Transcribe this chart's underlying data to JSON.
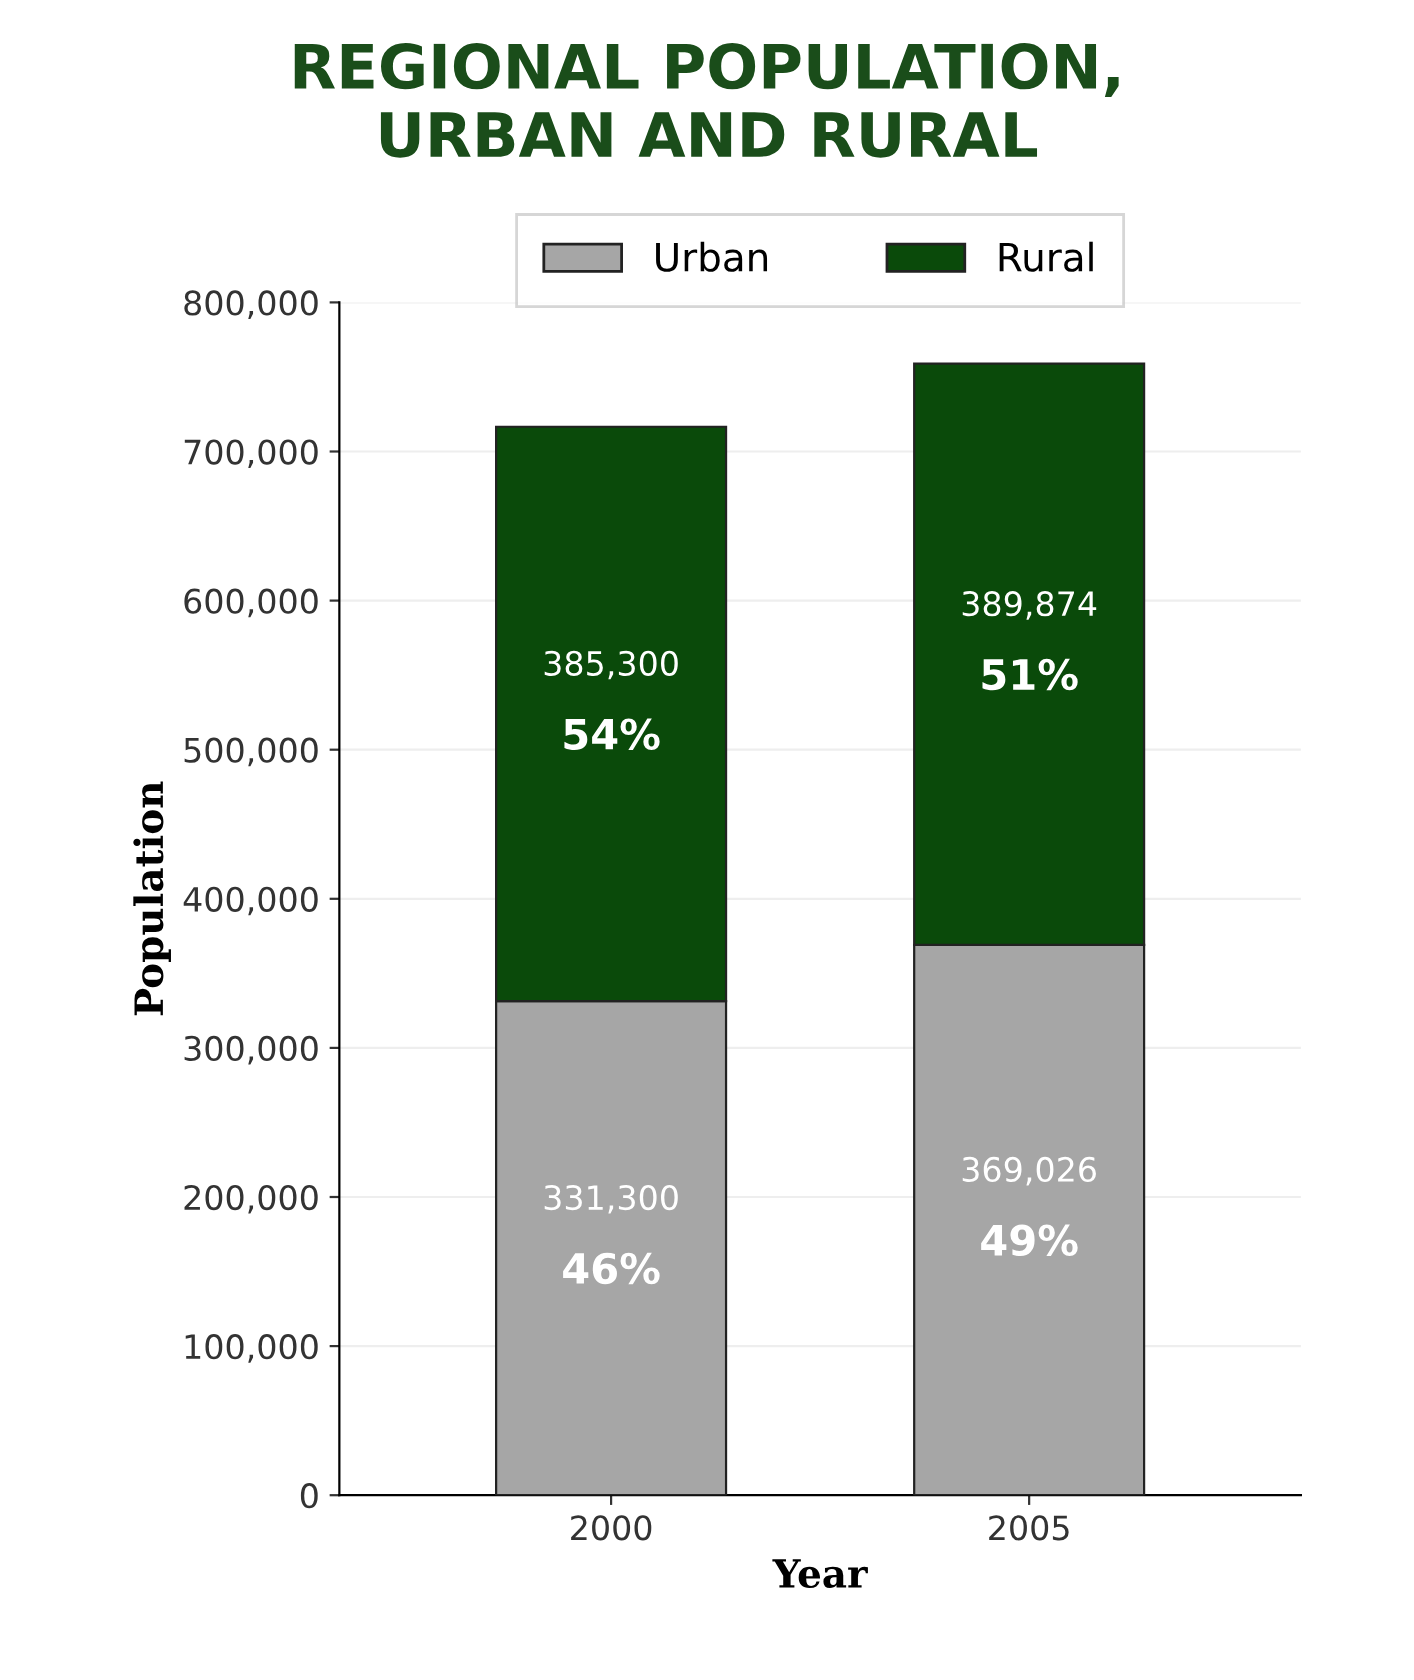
{
  "chart_data": {
    "type": "bar",
    "title": "REGIONAL POPULATION,\nURBAN AND RURAL",
    "xlabel": "Year",
    "ylabel": "Population",
    "categories": [
      "2000",
      "2005"
    ],
    "stacked": true,
    "series": [
      {
        "name": "Urban",
        "color": "#a6a6a6",
        "values": [
          331300,
          369026
        ],
        "value_labels": [
          "331,300\n46%",
          "369,026\n49%"
        ]
      },
      {
        "name": "Rural",
        "color": "#0a4a0a",
        "values": [
          385300,
          389874
        ],
        "value_labels": [
          "385,300\n54%",
          "389,874\n51%"
        ]
      }
    ],
    "ylim": [
      0,
      800000
    ],
    "yticks": [
      {
        "value": 0,
        "label": "0"
      },
      {
        "value": 100000,
        "label": "100,000"
      },
      {
        "value": 200000,
        "label": "200,000"
      },
      {
        "value": 300000,
        "label": "300,000"
      },
      {
        "value": 400000,
        "label": "400,000"
      },
      {
        "value": 500000,
        "label": "500,000"
      },
      {
        "value": 600000,
        "label": "600,000"
      },
      {
        "value": 700000,
        "label": "700,000"
      },
      {
        "value": 800000,
        "label": "800,000"
      }
    ],
    "grid": "y",
    "legend": "top"
  }
}
